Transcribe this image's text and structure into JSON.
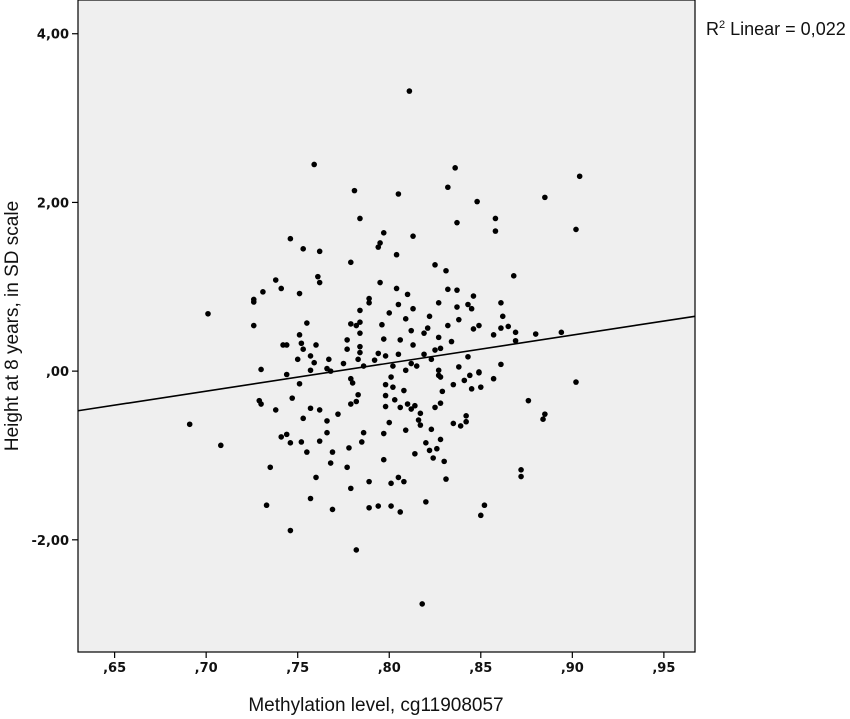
{
  "chart_data": {
    "type": "scatter",
    "title": "",
    "xlabel": "Methylation level, cg11908057",
    "ylabel": "Height at 8 years, in SD scale",
    "xlim": [
      0.63,
      0.967
    ],
    "ylim": [
      -3.33,
      4.4
    ],
    "x_ticks": [
      0.65,
      0.7,
      0.75,
      0.8,
      0.85,
      0.9,
      0.95
    ],
    "x_tick_labels": [
      ",65",
      ",70",
      ",75",
      ",80",
      ",85",
      ",90",
      ",95"
    ],
    "y_ticks": [
      -2,
      0,
      2,
      4
    ],
    "y_tick_labels": [
      "-2,00",
      ",00",
      "2,00",
      "4,00"
    ],
    "grid": false,
    "fit_line": {
      "label_main": "R",
      "label_sup": "2",
      "label_rest": " Linear = 0,022",
      "x": [
        0.63,
        0.967
      ],
      "y": [
        -0.47,
        0.65
      ]
    },
    "colors": {
      "plot_background": "#efefef",
      "point": "#000000",
      "line": "#000000"
    },
    "points": [
      {
        "x": 0.811,
        "y": 3.32
      },
      {
        "x": 0.759,
        "y": 2.45
      },
      {
        "x": 0.836,
        "y": 2.41
      },
      {
        "x": 0.904,
        "y": 2.31
      },
      {
        "x": 0.832,
        "y": 2.18
      },
      {
        "x": 0.781,
        "y": 2.14
      },
      {
        "x": 0.805,
        "y": 2.1
      },
      {
        "x": 0.885,
        "y": 2.06
      },
      {
        "x": 0.848,
        "y": 2.01
      },
      {
        "x": 0.784,
        "y": 1.81
      },
      {
        "x": 0.858,
        "y": 1.81
      },
      {
        "x": 0.837,
        "y": 1.76
      },
      {
        "x": 0.902,
        "y": 1.68
      },
      {
        "x": 0.858,
        "y": 1.66
      },
      {
        "x": 0.797,
        "y": 1.64
      },
      {
        "x": 0.813,
        "y": 1.6
      },
      {
        "x": 0.746,
        "y": 1.57
      },
      {
        "x": 0.795,
        "y": 1.52
      },
      {
        "x": 0.794,
        "y": 1.47
      },
      {
        "x": 0.753,
        "y": 1.45
      },
      {
        "x": 0.762,
        "y": 1.42
      },
      {
        "x": 0.804,
        "y": 1.38
      },
      {
        "x": 0.779,
        "y": 1.29
      },
      {
        "x": 0.825,
        "y": 1.26
      },
      {
        "x": 0.831,
        "y": 1.19
      },
      {
        "x": 0.868,
        "y": 1.13
      },
      {
        "x": 0.761,
        "y": 1.12
      },
      {
        "x": 0.738,
        "y": 1.08
      },
      {
        "x": 0.762,
        "y": 1.05
      },
      {
        "x": 0.795,
        "y": 1.05
      },
      {
        "x": 0.741,
        "y": 0.98
      },
      {
        "x": 0.804,
        "y": 0.98
      },
      {
        "x": 0.832,
        "y": 0.97
      },
      {
        "x": 0.837,
        "y": 0.96
      },
      {
        "x": 0.731,
        "y": 0.94
      },
      {
        "x": 0.751,
        "y": 0.92
      },
      {
        "x": 0.81,
        "y": 0.91
      },
      {
        "x": 0.846,
        "y": 0.89
      },
      {
        "x": 0.789,
        "y": 0.86
      },
      {
        "x": 0.726,
        "y": 0.85
      },
      {
        "x": 0.726,
        "y": 0.82
      },
      {
        "x": 0.789,
        "y": 0.81
      },
      {
        "x": 0.827,
        "y": 0.81
      },
      {
        "x": 0.861,
        "y": 0.81
      },
      {
        "x": 0.805,
        "y": 0.79
      },
      {
        "x": 0.843,
        "y": 0.79
      },
      {
        "x": 0.837,
        "y": 0.76
      },
      {
        "x": 0.813,
        "y": 0.74
      },
      {
        "x": 0.845,
        "y": 0.74
      },
      {
        "x": 0.784,
        "y": 0.72
      },
      {
        "x": 0.8,
        "y": 0.69
      },
      {
        "x": 0.701,
        "y": 0.68
      },
      {
        "x": 0.822,
        "y": 0.65
      },
      {
        "x": 0.862,
        "y": 0.65
      },
      {
        "x": 0.809,
        "y": 0.62
      },
      {
        "x": 0.838,
        "y": 0.61
      },
      {
        "x": 0.784,
        "y": 0.58
      },
      {
        "x": 0.755,
        "y": 0.57
      },
      {
        "x": 0.779,
        "y": 0.56
      },
      {
        "x": 0.796,
        "y": 0.55
      },
      {
        "x": 0.726,
        "y": 0.54
      },
      {
        "x": 0.782,
        "y": 0.54
      },
      {
        "x": 0.832,
        "y": 0.54
      },
      {
        "x": 0.849,
        "y": 0.54
      },
      {
        "x": 0.865,
        "y": 0.53
      },
      {
        "x": 0.821,
        "y": 0.51
      },
      {
        "x": 0.861,
        "y": 0.51
      },
      {
        "x": 0.846,
        "y": 0.5
      },
      {
        "x": 0.812,
        "y": 0.48
      },
      {
        "x": 0.869,
        "y": 0.46
      },
      {
        "x": 0.784,
        "y": 0.45
      },
      {
        "x": 0.819,
        "y": 0.45
      },
      {
        "x": 0.894,
        "y": 0.46
      },
      {
        "x": 0.751,
        "y": 0.43
      },
      {
        "x": 0.857,
        "y": 0.43
      },
      {
        "x": 0.88,
        "y": 0.44
      },
      {
        "x": 0.827,
        "y": 0.4
      },
      {
        "x": 0.797,
        "y": 0.38
      },
      {
        "x": 0.777,
        "y": 0.37
      },
      {
        "x": 0.806,
        "y": 0.37
      },
      {
        "x": 0.869,
        "y": 0.36
      },
      {
        "x": 0.834,
        "y": 0.35
      },
      {
        "x": 0.752,
        "y": 0.33
      },
      {
        "x": 0.742,
        "y": 0.31
      },
      {
        "x": 0.744,
        "y": 0.31
      },
      {
        "x": 0.76,
        "y": 0.31
      },
      {
        "x": 0.813,
        "y": 0.31
      },
      {
        "x": 0.784,
        "y": 0.29
      },
      {
        "x": 0.828,
        "y": 0.27
      },
      {
        "x": 0.753,
        "y": 0.26
      },
      {
        "x": 0.777,
        "y": 0.26
      },
      {
        "x": 0.825,
        "y": 0.25
      },
      {
        "x": 0.784,
        "y": 0.22
      },
      {
        "x": 0.794,
        "y": 0.21
      },
      {
        "x": 0.805,
        "y": 0.2
      },
      {
        "x": 0.819,
        "y": 0.2
      },
      {
        "x": 0.757,
        "y": 0.18
      },
      {
        "x": 0.798,
        "y": 0.18
      },
      {
        "x": 0.843,
        "y": 0.17
      },
      {
        "x": 0.75,
        "y": 0.14
      },
      {
        "x": 0.767,
        "y": 0.14
      },
      {
        "x": 0.783,
        "y": 0.14
      },
      {
        "x": 0.823,
        "y": 0.14
      },
      {
        "x": 0.792,
        "y": 0.13
      },
      {
        "x": 0.759,
        "y": 0.1
      },
      {
        "x": 0.775,
        "y": 0.09
      },
      {
        "x": 0.812,
        "y": 0.09
      },
      {
        "x": 0.861,
        "y": 0.08
      },
      {
        "x": 0.786,
        "y": 0.06
      },
      {
        "x": 0.802,
        "y": 0.06
      },
      {
        "x": 0.815,
        "y": 0.06
      },
      {
        "x": 0.838,
        "y": 0.05
      },
      {
        "x": 0.766,
        "y": 0.03
      },
      {
        "x": 0.73,
        "y": 0.02
      },
      {
        "x": 0.757,
        "y": 0.01
      },
      {
        "x": 0.809,
        "y": 0.01
      },
      {
        "x": 0.827,
        "y": 0.01
      },
      {
        "x": 0.768,
        "y": 0.0
      },
      {
        "x": 0.849,
        "y": -0.01
      },
      {
        "x": 0.849,
        "y": -0.02
      },
      {
        "x": 0.744,
        "y": -0.04
      },
      {
        "x": 0.827,
        "y": -0.05
      },
      {
        "x": 0.844,
        "y": -0.05
      },
      {
        "x": 0.801,
        "y": -0.07
      },
      {
        "x": 0.828,
        "y": -0.07
      },
      {
        "x": 0.779,
        "y": -0.09
      },
      {
        "x": 0.857,
        "y": -0.09
      },
      {
        "x": 0.841,
        "y": -0.11
      },
      {
        "x": 0.902,
        "y": -0.13
      },
      {
        "x": 0.78,
        "y": -0.14
      },
      {
        "x": 0.751,
        "y": -0.15
      },
      {
        "x": 0.798,
        "y": -0.16
      },
      {
        "x": 0.835,
        "y": -0.16
      },
      {
        "x": 0.802,
        "y": -0.19
      },
      {
        "x": 0.85,
        "y": -0.19
      },
      {
        "x": 0.845,
        "y": -0.21
      },
      {
        "x": 0.808,
        "y": -0.23
      },
      {
        "x": 0.829,
        "y": -0.24
      },
      {
        "x": 0.783,
        "y": -0.28
      },
      {
        "x": 0.798,
        "y": -0.29
      },
      {
        "x": 0.747,
        "y": -0.32
      },
      {
        "x": 0.803,
        "y": -0.34
      },
      {
        "x": 0.729,
        "y": -0.35
      },
      {
        "x": 0.876,
        "y": -0.35
      },
      {
        "x": 0.782,
        "y": -0.36
      },
      {
        "x": 0.828,
        "y": -0.38
      },
      {
        "x": 0.73,
        "y": -0.39
      },
      {
        "x": 0.779,
        "y": -0.39
      },
      {
        "x": 0.81,
        "y": -0.39
      },
      {
        "x": 0.814,
        "y": -0.41
      },
      {
        "x": 0.798,
        "y": -0.42
      },
      {
        "x": 0.806,
        "y": -0.43
      },
      {
        "x": 0.825,
        "y": -0.43
      },
      {
        "x": 0.757,
        "y": -0.44
      },
      {
        "x": 0.812,
        "y": -0.45
      },
      {
        "x": 0.738,
        "y": -0.46
      },
      {
        "x": 0.762,
        "y": -0.46
      },
      {
        "x": 0.817,
        "y": -0.5
      },
      {
        "x": 0.772,
        "y": -0.51
      },
      {
        "x": 0.885,
        "y": -0.51
      },
      {
        "x": 0.842,
        "y": -0.53
      },
      {
        "x": 0.753,
        "y": -0.56
      },
      {
        "x": 0.884,
        "y": -0.57
      },
      {
        "x": 0.816,
        "y": -0.58
      },
      {
        "x": 0.766,
        "y": -0.59
      },
      {
        "x": 0.842,
        "y": -0.6
      },
      {
        "x": 0.8,
        "y": -0.61
      },
      {
        "x": 0.835,
        "y": -0.62
      },
      {
        "x": 0.691,
        "y": -0.63
      },
      {
        "x": 0.817,
        "y": -0.64
      },
      {
        "x": 0.839,
        "y": -0.65
      },
      {
        "x": 0.823,
        "y": -0.69
      },
      {
        "x": 0.809,
        "y": -0.7
      },
      {
        "x": 0.766,
        "y": -0.73
      },
      {
        "x": 0.786,
        "y": -0.73
      },
      {
        "x": 0.797,
        "y": -0.74
      },
      {
        "x": 0.744,
        "y": -0.75
      },
      {
        "x": 0.741,
        "y": -0.78
      },
      {
        "x": 0.828,
        "y": -0.81
      },
      {
        "x": 0.762,
        "y": -0.83
      },
      {
        "x": 0.785,
        "y": -0.84
      },
      {
        "x": 0.752,
        "y": -0.84
      },
      {
        "x": 0.746,
        "y": -0.85
      },
      {
        "x": 0.82,
        "y": -0.85
      },
      {
        "x": 0.708,
        "y": -0.88
      },
      {
        "x": 0.778,
        "y": -0.91
      },
      {
        "x": 0.826,
        "y": -0.92
      },
      {
        "x": 0.822,
        "y": -0.94
      },
      {
        "x": 0.755,
        "y": -0.96
      },
      {
        "x": 0.769,
        "y": -0.96
      },
      {
        "x": 0.814,
        "y": -0.98
      },
      {
        "x": 0.824,
        "y": -1.03
      },
      {
        "x": 0.797,
        "y": -1.05
      },
      {
        "x": 0.83,
        "y": -1.07
      },
      {
        "x": 0.768,
        "y": -1.09
      },
      {
        "x": 0.735,
        "y": -1.14
      },
      {
        "x": 0.777,
        "y": -1.14
      },
      {
        "x": 0.872,
        "y": -1.17
      },
      {
        "x": 0.872,
        "y": -1.25
      },
      {
        "x": 0.76,
        "y": -1.26
      },
      {
        "x": 0.805,
        "y": -1.26
      },
      {
        "x": 0.831,
        "y": -1.28
      },
      {
        "x": 0.789,
        "y": -1.31
      },
      {
        "x": 0.808,
        "y": -1.31
      },
      {
        "x": 0.801,
        "y": -1.33
      },
      {
        "x": 0.779,
        "y": -1.39
      },
      {
        "x": 0.757,
        "y": -1.51
      },
      {
        "x": 0.82,
        "y": -1.55
      },
      {
        "x": 0.733,
        "y": -1.59
      },
      {
        "x": 0.852,
        "y": -1.59
      },
      {
        "x": 0.794,
        "y": -1.6
      },
      {
        "x": 0.801,
        "y": -1.6
      },
      {
        "x": 0.789,
        "y": -1.62
      },
      {
        "x": 0.769,
        "y": -1.64
      },
      {
        "x": 0.806,
        "y": -1.67
      },
      {
        "x": 0.85,
        "y": -1.71
      },
      {
        "x": 0.746,
        "y": -1.89
      },
      {
        "x": 0.782,
        "y": -2.12
      },
      {
        "x": 0.818,
        "y": -2.76
      }
    ]
  }
}
